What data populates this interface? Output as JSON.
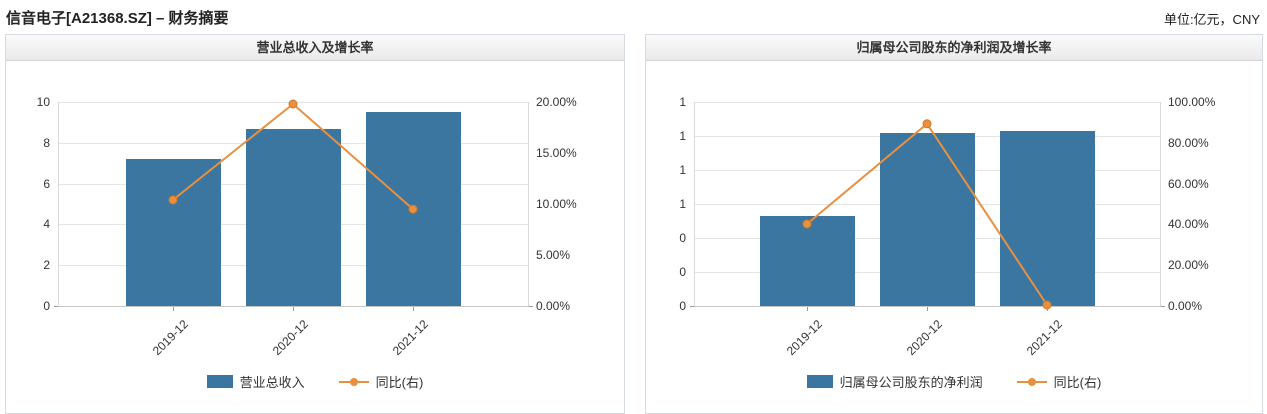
{
  "page": {
    "title": "信音电子[A21368.SZ] – 财务摘要",
    "unit_label": "单位:亿元，CNY"
  },
  "colors": {
    "bar": "#3B76A0",
    "line": "#E8903F",
    "line_marker_edge": "#D07B28",
    "grid": "#E4E4E4",
    "axis_side": "#D9D9D9",
    "axis_bottom": "#C6C6C6",
    "text": "#333333"
  },
  "chart_data": [
    {
      "type": "bar",
      "title": "营业总收入及增长率",
      "categories": [
        "2019-12",
        "2020-12",
        "2021-12"
      ],
      "series": [
        {
          "name": "营业总收入",
          "type": "bar",
          "axis": "left",
          "values": [
            7.21,
            8.68,
            9.51
          ]
        },
        {
          "name": "同比(右)",
          "type": "line",
          "axis": "right",
          "values": [
            10.4,
            19.8,
            9.5
          ],
          "unit": "%"
        }
      ],
      "left_axis": {
        "min": 0,
        "max": 10,
        "tick_labels": [
          "10",
          "8",
          "6",
          "4",
          "2",
          "0"
        ]
      },
      "right_axis": {
        "min": 0,
        "max": 20,
        "tick_labels": [
          "20.00%",
          "15.00%",
          "10.00%",
          "5.00%",
          "0.00%"
        ]
      },
      "legend": [
        {
          "label": "营业总收入",
          "swatch": "bar"
        },
        {
          "label": "同比(右)",
          "swatch": "line"
        }
      ]
    },
    {
      "type": "bar",
      "title": "归属母公司股东的净利润及增长率",
      "categories": [
        "2019-12",
        "2020-12",
        "2021-12"
      ],
      "series": [
        {
          "name": "归属母公司股东的净利润",
          "type": "bar",
          "axis": "left",
          "values": [
            0.53,
            1.02,
            1.03
          ]
        },
        {
          "name": "同比(右)",
          "type": "line",
          "axis": "right",
          "values": [
            40.2,
            89.3,
            0.5
          ],
          "unit": "%"
        }
      ],
      "left_axis": {
        "min": 0,
        "max": 1.2,
        "tick_labels": [
          "1",
          "1",
          "1",
          "1",
          "0",
          "0",
          "0"
        ]
      },
      "right_axis": {
        "min": 0,
        "max": 100,
        "tick_labels": [
          "100.00%",
          "80.00%",
          "60.00%",
          "40.00%",
          "20.00%",
          "0.00%"
        ]
      },
      "legend": [
        {
          "label": "归属母公司股东的净利润",
          "swatch": "bar"
        },
        {
          "label": "同比(右)",
          "swatch": "line"
        }
      ]
    }
  ]
}
